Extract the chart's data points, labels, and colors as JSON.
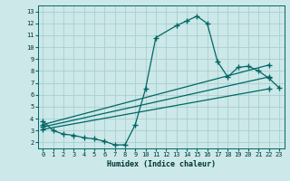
{
  "xlabel": "Humidex (Indice chaleur)",
  "xlim": [
    -0.5,
    23.5
  ],
  "ylim": [
    1.5,
    13.5
  ],
  "xticks": [
    0,
    1,
    2,
    3,
    4,
    5,
    6,
    7,
    8,
    9,
    10,
    11,
    12,
    13,
    14,
    15,
    16,
    17,
    18,
    19,
    20,
    21,
    22,
    23
  ],
  "yticks": [
    2,
    3,
    4,
    5,
    6,
    7,
    8,
    9,
    10,
    11,
    12,
    13
  ],
  "bg_color": "#cce8e8",
  "grid_color": "#aacece",
  "line_color": "#006666",
  "line_width": 0.9,
  "marker": "+",
  "marker_size": 4,
  "curves": [
    {
      "x": [
        0,
        1,
        2,
        3,
        4,
        5,
        6,
        7,
        8,
        9,
        10,
        11,
        13,
        14,
        15,
        16,
        17,
        18,
        19,
        20,
        21,
        22,
        23
      ],
      "y": [
        3.8,
        3.0,
        2.7,
        2.6,
        2.4,
        2.3,
        2.1,
        1.8,
        1.8,
        3.5,
        6.5,
        10.8,
        11.8,
        12.2,
        12.6,
        12.0,
        8.8,
        7.5,
        8.3,
        8.4,
        8.0,
        7.4,
        6.6
      ]
    },
    {
      "x": [
        0,
        22
      ],
      "y": [
        3.5,
        8.5
      ]
    },
    {
      "x": [
        0,
        22
      ],
      "y": [
        3.3,
        7.5
      ]
    },
    {
      "x": [
        0,
        22
      ],
      "y": [
        3.1,
        6.5
      ]
    }
  ]
}
